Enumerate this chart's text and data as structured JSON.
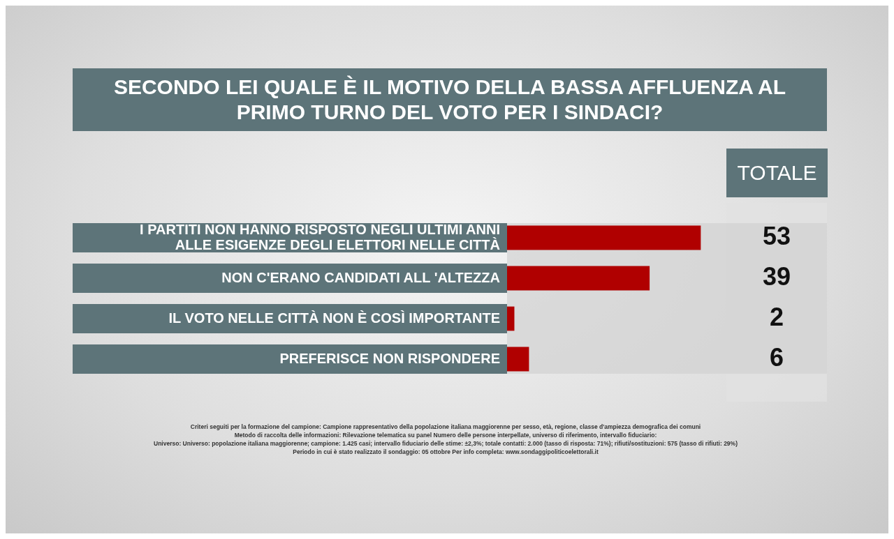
{
  "chart_data": {
    "type": "bar",
    "orientation": "horizontal",
    "title": "SECONDO LEI QUALE È IL MOTIVO DELLA BASSA AFFLUENZA AL PRIMO TURNO DEL VOTO PER I SINDACI?",
    "categories": [
      "I PARTITI NON HANNO RISPOSTO NEGLI ULTIMI ANNI ALLE ESIGENZE DEGLI ELETTORI NELLE CITTÀ",
      "NON C'ERANO CANDIDATI ALL 'ALTEZZA",
      "IL VOTO NELLE CITTÀ NON È COSÌ IMPORTANTE",
      "PREFERISCE NON RISPONDERE"
    ],
    "series": [
      {
        "name": "TOTALE",
        "color": "#b00000",
        "values": [
          53,
          39,
          2,
          6
        ]
      }
    ],
    "data_labels": true,
    "legend": false,
    "annotations": [
      "Criteri seguiti per la formazione del campione: Campione rappresentativo della popolazione italiana maggiorenne per sesso, età, regione, classe d'ampiezza demografica dei comuni",
      "Metodo di raccolta delle informazioni: Rilevazione telematica su panel Numero delle persone interpellate, universo di riferimento, intervallo fiduciario:",
      "Universo: Universo: popolazione italiana maggiorenne; campione: 1.425 casi; intervallo fiduciario delle stime: ±2,3%; totale contatti: 2.000 (tasso di risposta: 71%); rifiuti/sostituzioni: 575 (tasso di rifiuti: 29%)",
      "Periodo in cui è stato realizzato il sondaggio: 05 ottobre Per info completa: www.sondaggipoliticoelettorali.it"
    ]
  }
}
